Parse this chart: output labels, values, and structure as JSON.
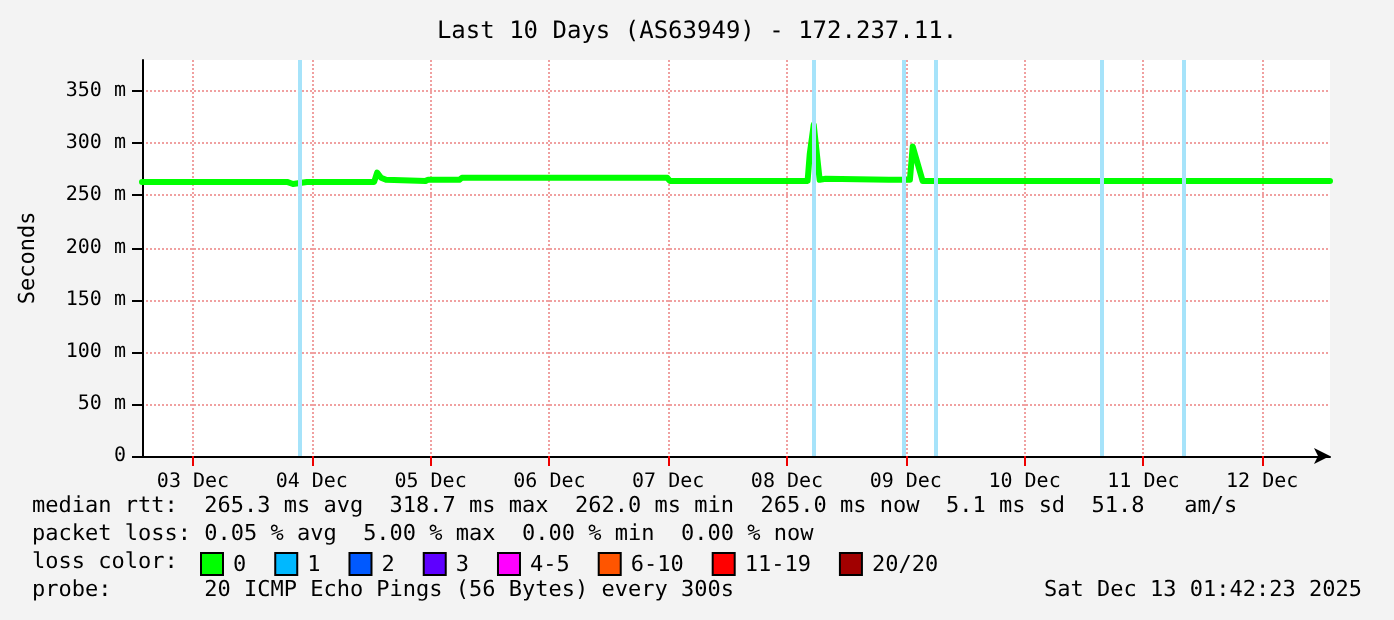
{
  "chart_data": {
    "type": "line",
    "title": "Last 10 Days (AS63949) - 172.237.11.",
    "ylabel": "Seconds",
    "x": [
      "2025-12-03T01:42",
      "2025-12-04T07:00",
      "2025-12-04T08:12",
      "2025-12-04T11:00",
      "2025-12-05T00:36",
      "2025-12-05T01:12",
      "2025-12-05T02:00",
      "2025-12-05T03:00",
      "2025-12-05T11:00",
      "2025-12-05T11:30",
      "2025-12-05T17:48",
      "2025-12-05T18:20",
      "2025-12-07T11:48",
      "2025-12-07T12:20",
      "2025-12-08T16:10",
      "2025-12-08T16:36",
      "2025-12-08T17:24",
      "2025-12-08T18:36",
      "2025-12-08T19:48",
      "2025-12-09T08:36",
      "2025-12-09T12:50",
      "2025-12-09T13:24",
      "2025-12-09T15:24",
      "2025-12-13T01:42"
    ],
    "series": [
      {
        "name": "0",
        "color": "#00ff00",
        "values": [
          263,
          263,
          261,
          263,
          263,
          272,
          267,
          265,
          264,
          265,
          265,
          267,
          267,
          264,
          264,
          290,
          318,
          265,
          266,
          265,
          265,
          297,
          264,
          264
        ]
      },
      {
        "name": "1",
        "color": "#00b8ff",
        "values": [
          null,
          null,
          null,
          null,
          null,
          null,
          null,
          null,
          null,
          null,
          null,
          null,
          null,
          null,
          null,
          null,
          null,
          null,
          null,
          null,
          null,
          null,
          null,
          null
        ]
      },
      {
        "name": "2",
        "color": "#0059ff",
        "values": [
          null,
          null,
          null,
          null,
          null,
          null,
          null,
          null,
          null,
          null,
          null,
          null,
          null,
          null,
          null,
          null,
          null,
          null,
          null,
          null,
          null,
          null,
          null,
          null
        ]
      },
      {
        "name": "3",
        "color": "#5e00ff",
        "values": [
          null,
          null,
          null,
          null,
          null,
          null,
          null,
          null,
          null,
          null,
          null,
          null,
          null,
          null,
          null,
          null,
          null,
          null,
          null,
          null,
          null,
          null,
          null,
          null
        ]
      },
      {
        "name": "4-5",
        "color": "#ff00ff",
        "values": [
          null,
          null,
          null,
          null,
          null,
          null,
          null,
          null,
          null,
          null,
          null,
          null,
          null,
          null,
          null,
          null,
          null,
          null,
          null,
          null,
          null,
          null,
          null,
          null
        ]
      },
      {
        "name": "6-10",
        "color": "#ff5500",
        "values": [
          null,
          null,
          null,
          null,
          null,
          null,
          null,
          null,
          null,
          null,
          null,
          null,
          null,
          null,
          null,
          null,
          null,
          null,
          null,
          null,
          null,
          null,
          null,
          null
        ]
      },
      {
        "name": "11-19",
        "color": "#ff0000",
        "values": [
          null,
          null,
          null,
          null,
          null,
          null,
          null,
          null,
          null,
          null,
          null,
          null,
          null,
          null,
          null,
          null,
          null,
          null,
          null,
          null,
          null,
          null,
          null,
          null
        ]
      },
      {
        "name": "20/20",
        "color": "#a10000",
        "values": [
          null,
          null,
          null,
          null,
          null,
          null,
          null,
          null,
          null,
          null,
          null,
          null,
          null,
          null,
          null,
          null,
          null,
          null,
          null,
          null,
          null,
          null,
          null,
          null
        ]
      }
    ],
    "xlim": [
      "2025-12-03T01:42",
      "2025-12-13T01:42"
    ],
    "xticks": [
      {
        "value": "2025-12-03T12:00",
        "label": "03 Dec"
      },
      {
        "value": "2025-12-04T12:00",
        "label": "04 Dec"
      },
      {
        "value": "2025-12-05T12:00",
        "label": "05 Dec"
      },
      {
        "value": "2025-12-06T12:00",
        "label": "06 Dec"
      },
      {
        "value": "2025-12-07T12:00",
        "label": "07 Dec"
      },
      {
        "value": "2025-12-08T12:00",
        "label": "08 Dec"
      },
      {
        "value": "2025-12-09T12:00",
        "label": "09 Dec"
      },
      {
        "value": "2025-12-10T12:00",
        "label": "10 Dec"
      },
      {
        "value": "2025-12-11T12:00",
        "label": "11 Dec"
      },
      {
        "value": "2025-12-12T12:00",
        "label": "12 Dec"
      }
    ],
    "ylim": [
      0,
      380
    ],
    "yticks": [
      0,
      {
        "value": 50,
        "label": "50 m"
      },
      {
        "value": 100,
        "label": "100 m"
      },
      {
        "value": 150,
        "label": "150 m"
      },
      {
        "value": 200,
        "label": "200 m"
      },
      {
        "value": 250,
        "label": "250 m"
      },
      {
        "value": 300,
        "label": "300 m"
      },
      {
        "value": 350,
        "label": "350 m"
      }
    ],
    "ref_lines": [
      {
        "axis": "x",
        "value": "2025-12-04T09:24",
        "color": "#a6e3fa"
      },
      {
        "axis": "x",
        "value": "2025-12-08T17:24",
        "color": "#a6e3fa"
      },
      {
        "axis": "x",
        "value": "2025-12-09T11:24",
        "color": "#a6e3fa"
      },
      {
        "axis": "x",
        "value": "2025-12-09T18:12",
        "color": "#a6e3fa"
      },
      {
        "axis": "x",
        "value": "2025-12-11T03:24",
        "color": "#a6e3fa"
      },
      {
        "axis": "x",
        "value": "2025-12-11T20:12",
        "color": "#a6e3fa"
      }
    ],
    "annotations": [
      "median rtt:  265.3 ms avg  318.7 ms max  262.0 ms min  265.0 ms now  5.1 ms sd  51.8   am/s",
      "packet loss: 0.05 % avg  5.00 % max  0.00 % min  0.00 % now",
      "loss color:",
      "probe:       20 ICMP Echo Pings (56 Bytes) every 300s",
      "Sat Dec 13 01:42:23 2025"
    ],
    "grid": true,
    "legend": "bottom left",
    "marker": "none",
    "line_style": "solid"
  }
}
